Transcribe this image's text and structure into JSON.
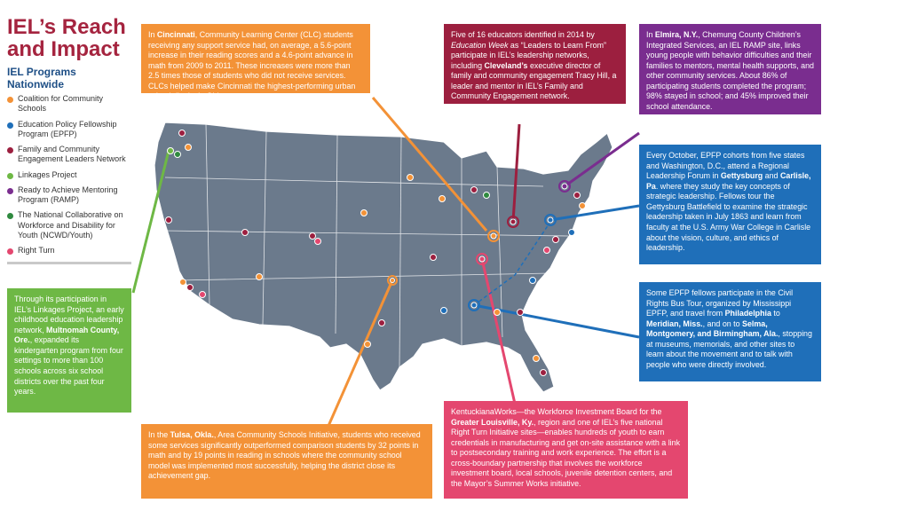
{
  "header": {
    "title": "IEL’s Reach and Impact"
  },
  "legend": {
    "title": "IEL Programs Nationwide",
    "items": [
      {
        "label": "Coalition for Community Schools",
        "color": "#f39237"
      },
      {
        "label": "Education Policy Fellowship Program (EPFP)",
        "color": "#1f6fb9"
      },
      {
        "label": "Family and Community Engagement Leaders Network",
        "color": "#9c1f3f"
      },
      {
        "label": "Linkages Project",
        "color": "#6eb845"
      },
      {
        "label": "Ready to Achieve Mentoring Program (RAMP)",
        "color": "#7a2d8f"
      },
      {
        "label": "The National Collaborative on Workforce and Disability for Youth (NCWD/Youth)",
        "color": "#2f8a3f"
      },
      {
        "label": "Right Turn",
        "color": "#e4476f"
      }
    ]
  },
  "callouts": {
    "cincinnati": {
      "pre": "In ",
      "bold": "Cincinnati",
      "post": ", Community Learning Center (CLC) students receiving any support service had, on average, a 5.6-point increase in their reading scores and a 4.6-point advance in math from 2009 to 2011. These increases were more than 2.5 times those of students who did not receive services. CLCs helped make Cincinnati the highest-performing urban school district in Ohio."
    },
    "cleveland": {
      "p1": "Five of 16 educators identified in 2014 by ",
      "italic": "Education Week",
      "p2": " as “Leaders to Learn From” participate in IEL’s leadership networks, including ",
      "bold": "Cleveland’s",
      "p3": " executive director of family and community engagement Tracy Hill, a leader and mentor in IEL’s Family and Community Engagement network."
    },
    "elmira": {
      "pre": "In ",
      "bold": "Elmira, N.Y.",
      "post": ", Chemung County Children’s Integrated Services, an IEL RAMP site, links young people with behavior difficulties and their families to mentors, mental health supports, and other community services. About 86% of participating students completed the program; 98% stayed in school; and 45% improved their school attendance."
    },
    "gettysburg": {
      "p1": "Every October, EPFP cohorts from five states and Washington, D.C., attend a Regional Leadership Forum in ",
      "b1": "Gettysburg",
      "p2": " and ",
      "b2": "Carlisle, Pa",
      "p3": ". where they study the key concepts of strategic leadership. Fellows tour the Gettysburg Battlefield to examine the strategic leadership taken in July 1863 and learn from faculty at the U.S. Army War College in Carlisle about the vision, culture, and ethics of leadership."
    },
    "civilrights": {
      "p1": "Some EPFP fellows participate in the Civil Rights Bus Tour, organized by Mississippi EPFP, and travel from ",
      "b1": "Philadelphia",
      "p2": " to ",
      "b2": "Meridian, Miss.",
      "p3": ", and on to ",
      "b3": "Selma, Montgomery, and Birmingham, Ala.",
      "p4": ", stopping at museums, memorials, and other sites to learn about the movement and to talk with people who were directly involved."
    },
    "multnomah": {
      "p1": "Through its participation in IEL’s Linkages Project, an early childhood education leadership network, ",
      "bold": "Multnomah County, Ore.",
      "p2": ", expanded its kindergarten program from four settings to more than 100 schools across six school districts over the past four years."
    },
    "tulsa": {
      "pre": "In the ",
      "bold": "Tulsa, Okla.",
      "post": ", Area Community Schools Initiative, students who received some services significantly outperformed comparison students by 32 points in math and by 19 points in reading in schools where the community school model was implemented most successfully, helping the district close its achievement gap."
    },
    "louisville": {
      "p1": "KentuckianaWorks—the Workforce Investment Board for the ",
      "bold": "Greater Louisville, Ky.",
      "p2": ", region and one of IEL’s five national Right Turn Initiative sites—enables hundreds of youth to earn credentials in manufacturing and get on-site assistance with a link to postsecondary training and work experience. The effort is a cross-boundary partnership that involves the workforce investment board, local schools, juvenile detention centers, and the Mayor’s Summer Works initiative."
    }
  },
  "colors": {
    "map_fill": "#6b7a8c",
    "state_border": "#ffffff",
    "coalition": "#f39237",
    "epfp": "#1f6fb9",
    "family": "#9c1f3f",
    "linkages": "#6eb845",
    "ramp": "#7a2d8f",
    "ncwd": "#2f8a3f",
    "rightturn": "#e4476f"
  }
}
